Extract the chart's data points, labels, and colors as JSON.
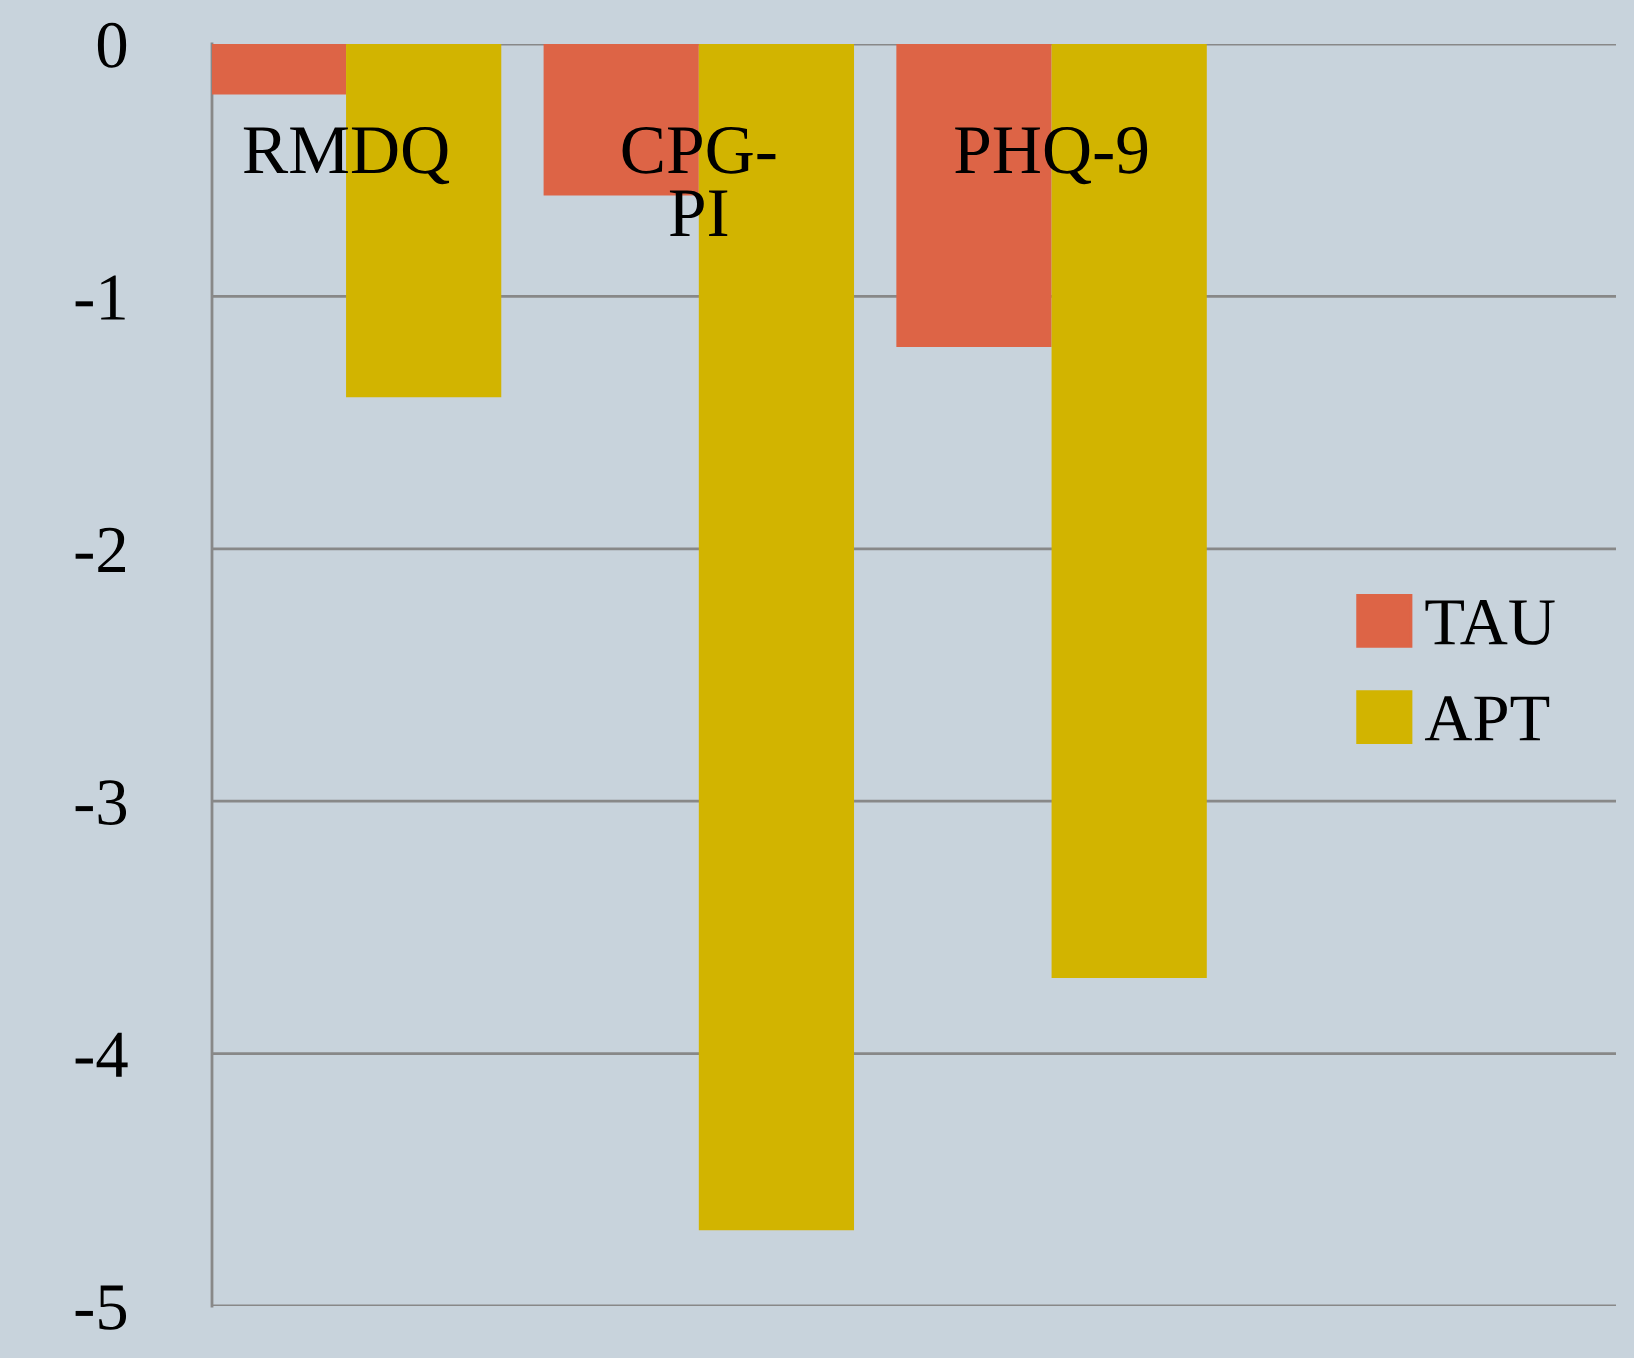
{
  "chart_data": {
    "type": "bar",
    "categories": [
      "RMDQ",
      "CPG-\nPI",
      "PHQ-9"
    ],
    "series": [
      {
        "name": "TAU",
        "color": "#dd6446",
        "values": [
          -0.2,
          -0.6,
          -1.2
        ]
      },
      {
        "name": "APT",
        "color": "#d2b400",
        "values": [
          -1.4,
          -4.7,
          -3.7
        ]
      }
    ],
    "ylim": [
      -5,
      0
    ],
    "yticks": [
      {
        "value": 0,
        "label": "0"
      },
      -1,
      -2,
      -3,
      -4,
      -5
    ],
    "grid": "y",
    "legend": "right"
  }
}
